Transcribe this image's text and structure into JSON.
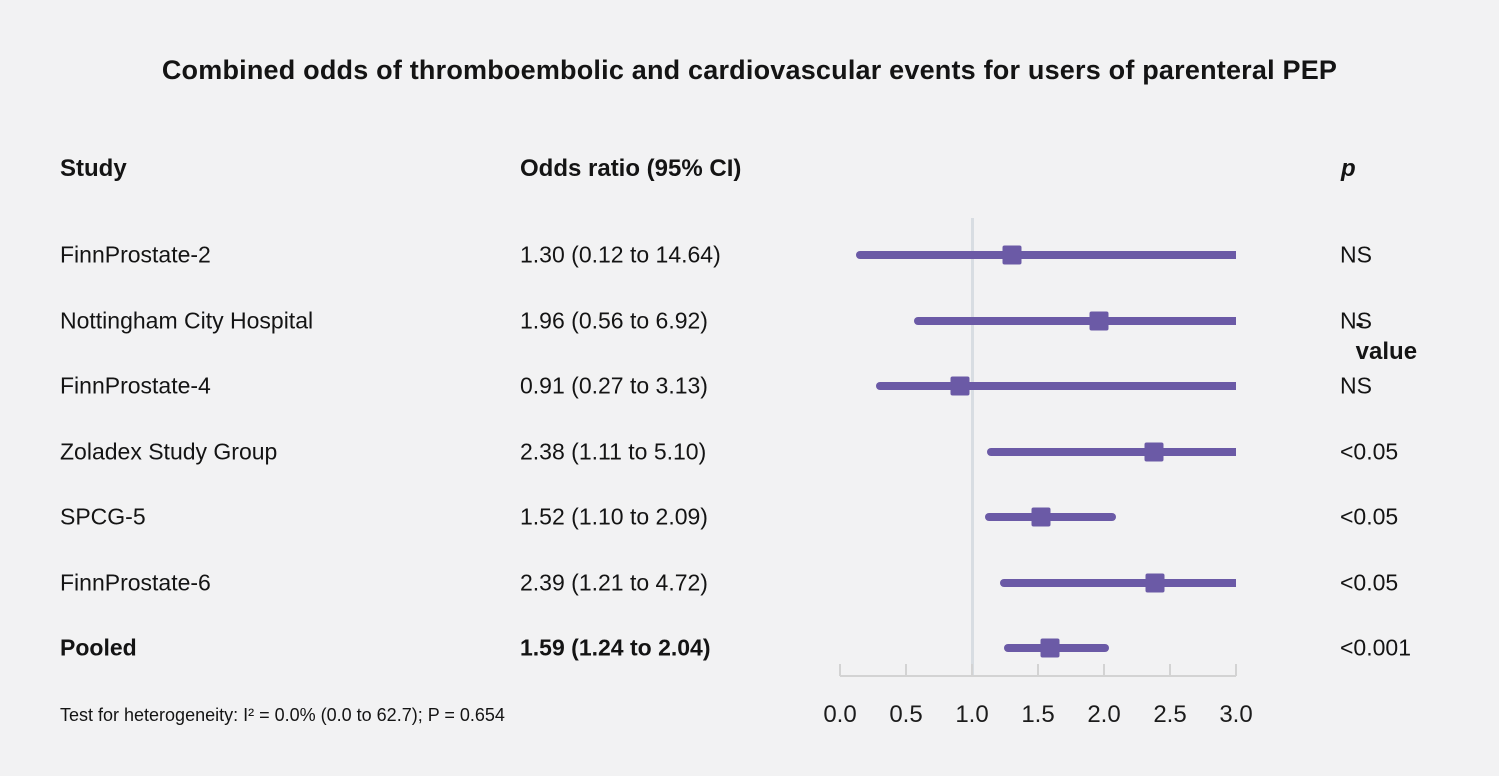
{
  "chart_data": {
    "type": "forest",
    "title": "Combined odds of thromboembolic and cardiovascular events for users of parenteral PEP",
    "columns": {
      "study": "Study",
      "odds_ratio": "Odds ratio (95% CI)",
      "p_italic": "p",
      "p_rest": "-value"
    },
    "rows": [
      {
        "study": "FinnProstate-2",
        "or": 1.3,
        "ci_low": 0.12,
        "ci_high": 14.64,
        "or_label": "1.30 (0.12 to 14.64)",
        "p": "NS",
        "bold": false
      },
      {
        "study": "Nottingham City Hospital",
        "or": 1.96,
        "ci_low": 0.56,
        "ci_high": 6.92,
        "or_label": "1.96 (0.56 to 6.92)",
        "p": "NS",
        "bold": false
      },
      {
        "study": "FinnProstate-4",
        "or": 0.91,
        "ci_low": 0.27,
        "ci_high": 3.13,
        "or_label": "0.91 (0.27 to 3.13)",
        "p": "NS",
        "bold": false
      },
      {
        "study": "Zoladex Study Group",
        "or": 2.38,
        "ci_low": 1.11,
        "ci_high": 5.1,
        "or_label": "2.38 (1.11 to 5.10)",
        "p": "<0.05",
        "bold": false
      },
      {
        "study": "SPCG-5",
        "or": 1.52,
        "ci_low": 1.1,
        "ci_high": 2.09,
        "or_label": "1.52 (1.10 to 2.09)",
        "p": "<0.05",
        "bold": false
      },
      {
        "study": "FinnProstate-6",
        "or": 2.39,
        "ci_low": 1.21,
        "ci_high": 4.72,
        "or_label": "2.39 (1.21 to 4.72)",
        "p": "<0.05",
        "bold": false
      },
      {
        "study": "Pooled",
        "or": 1.59,
        "ci_low": 1.24,
        "ci_high": 2.04,
        "or_label": "1.59 (1.24 to 2.04)",
        "p": "<0.001",
        "bold": true
      }
    ],
    "axis": {
      "xlim": [
        0.0,
        3.0
      ],
      "ticks": [
        0.0,
        0.5,
        1.0,
        1.5,
        2.0,
        2.5,
        3.0
      ],
      "tick_labels": [
        "0.0",
        "0.5",
        "1.0",
        "1.5",
        "2.0",
        "2.5",
        "3.0"
      ],
      "reference_line": 1.0
    },
    "footnote": "Test for heterogeneity: I² = 0.0% (0.0 to 62.7); P = 0.654",
    "colors": {
      "background": "#F2F2F3",
      "marker": "#6B5AA6",
      "ci_line": "#6B5AA6",
      "reference_line": "#D8DDE2",
      "axis": "#D3D3D3",
      "text": "#141414"
    }
  }
}
